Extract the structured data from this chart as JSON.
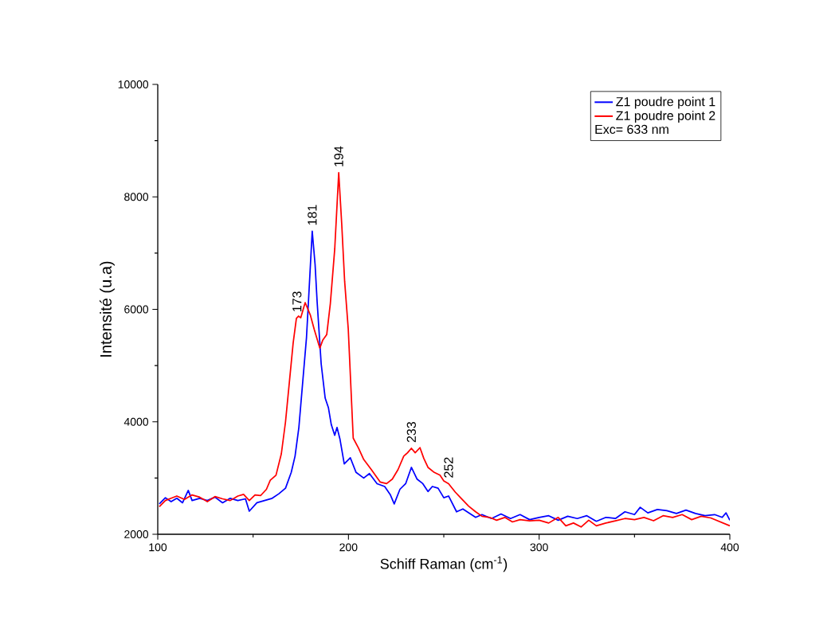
{
  "chart_data": {
    "type": "line",
    "xlabel": "Schiff Raman (cm$^{-1}$)",
    "ylabel": "Intensité (u.a)",
    "xlim": [
      100,
      400
    ],
    "xticks": [
      100,
      200,
      300,
      400
    ],
    "ylim": [
      2000,
      10000
    ],
    "yticks": [
      2000,
      4000,
      6000,
      8000,
      10000
    ],
    "legend": "top right",
    "line_style": "solid",
    "marker": "none",
    "annotations": [
      "Exc= 633 nm",
      {
        "text": "173",
        "x": 173,
        "y": 5850
      },
      {
        "text": "181",
        "x": 181,
        "y": 7390
      },
      {
        "text": "194",
        "x": 194.9,
        "y": 8430
      },
      {
        "text": "233",
        "x": 233,
        "y": 3530
      },
      {
        "text": "252",
        "x": 252.5,
        "y": 2900
      }
    ],
    "series": [
      {
        "name": "Z1 poudre point 1",
        "color": "#0000ff",
        "x": [
          100.8,
          104,
          107,
          110,
          113,
          116,
          118,
          122,
          126,
          130,
          134,
          138,
          142,
          146,
          148,
          152,
          156,
          160,
          163.5,
          167,
          170,
          172,
          174,
          176,
          178,
          179,
          181,
          182.5,
          183.6,
          185.7,
          187.8,
          189.5,
          191,
          192.8,
          194,
          195.5,
          197.8,
          201,
          204,
          208,
          211,
          215,
          219,
          222,
          224,
          227,
          230,
          233,
          236,
          239,
          241.7,
          244,
          247,
          250,
          252.5,
          256.7,
          260,
          266.7,
          270,
          275,
          280,
          285,
          290,
          295,
          300,
          305,
          310,
          315,
          320,
          325,
          330,
          335,
          340,
          345,
          350,
          353,
          357,
          362,
          367,
          372,
          377,
          382,
          387,
          392,
          396,
          398,
          400
        ],
        "values": [
          2540,
          2650,
          2580,
          2640,
          2560,
          2780,
          2600,
          2640,
          2600,
          2660,
          2560,
          2640,
          2600,
          2630,
          2410,
          2560,
          2600,
          2640,
          2720,
          2820,
          3100,
          3390,
          3900,
          4700,
          5500,
          6120,
          7390,
          6800,
          6120,
          5030,
          4420,
          4250,
          3950,
          3760,
          3900,
          3700,
          3250,
          3360,
          3100,
          3000,
          3080,
          2900,
          2850,
          2700,
          2540,
          2800,
          2900,
          3190,
          2980,
          2900,
          2760,
          2850,
          2820,
          2650,
          2680,
          2400,
          2450,
          2300,
          2350,
          2280,
          2360,
          2280,
          2350,
          2260,
          2300,
          2330,
          2250,
          2320,
          2280,
          2330,
          2230,
          2300,
          2280,
          2400,
          2350,
          2480,
          2380,
          2440,
          2420,
          2370,
          2430,
          2370,
          2330,
          2350,
          2300,
          2380,
          2250
        ]
      },
      {
        "name": "Z1 poudre point 2",
        "color": "#ff0000",
        "x": [
          100.8,
          104,
          107,
          110,
          114,
          118,
          122,
          126,
          130,
          134,
          138,
          142,
          145,
          148,
          151,
          154,
          157,
          159,
          162,
          164.8,
          167,
          169,
          171,
          172.7,
          173.8,
          175,
          177.3,
          180,
          182,
          185,
          186.5,
          188.6,
          190.5,
          192.8,
          194.9,
          196.5,
          198,
          199.9,
          202.5,
          205.3,
          208,
          212,
          216.6,
          220,
          223,
          226,
          229,
          231,
          233,
          235,
          237.5,
          239.5,
          241.7,
          245,
          248,
          250,
          252.5,
          256,
          259.6,
          263,
          266.7,
          270,
          274,
          277.7,
          282,
          286,
          290,
          295,
          300,
          305,
          310,
          314,
          318,
          322,
          326,
          330,
          335,
          340,
          345,
          350,
          355,
          360,
          365,
          370,
          375,
          380,
          385,
          390,
          395,
          400
        ],
        "values": [
          2490,
          2600,
          2640,
          2680,
          2620,
          2700,
          2660,
          2580,
          2670,
          2630,
          2600,
          2680,
          2710,
          2600,
          2700,
          2690,
          2800,
          2960,
          3050,
          3430,
          4000,
          4700,
          5400,
          5840,
          5880,
          5850,
          6120,
          5900,
          5650,
          5310,
          5450,
          5550,
          6100,
          7070,
          8430,
          7500,
          6500,
          5650,
          3710,
          3530,
          3330,
          3150,
          2930,
          2900,
          2980,
          3150,
          3390,
          3450,
          3530,
          3450,
          3540,
          3350,
          3190,
          3100,
          3050,
          2950,
          2900,
          2750,
          2620,
          2500,
          2400,
          2320,
          2300,
          2250,
          2300,
          2220,
          2260,
          2240,
          2250,
          2200,
          2300,
          2150,
          2200,
          2130,
          2250,
          2150,
          2200,
          2240,
          2280,
          2260,
          2300,
          2240,
          2330,
          2300,
          2350,
          2260,
          2320,
          2290,
          2220,
          2150
        ]
      }
    ]
  }
}
